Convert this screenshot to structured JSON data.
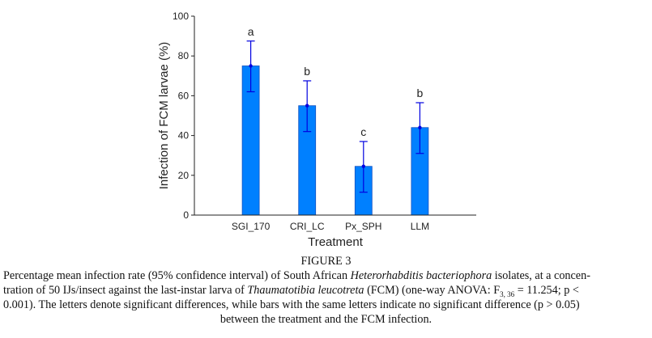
{
  "chart_data": {
    "type": "bar",
    "categories": [
      "SGI_170",
      "CRI_LC",
      "Px_SPH",
      "LLM"
    ],
    "values": [
      75,
      55,
      24.5,
      44
    ],
    "ci_lower": [
      62,
      42,
      11.5,
      31
    ],
    "ci_upper": [
      87.5,
      67.5,
      37,
      56.5
    ],
    "significance_letters": [
      "a",
      "b",
      "c",
      "b"
    ],
    "xlabel": "Treatment",
    "ylabel": "Infection of FCM larvae (%)",
    "ylim": [
      0,
      100
    ],
    "yticks": [
      "0",
      "20",
      "40",
      "60",
      "80",
      "100"
    ],
    "grid": false,
    "bar_color": "#0080ff",
    "error_color": "#0000e0"
  },
  "caption": {
    "figure_label": "FIGURE 3",
    "l1a": "Percentage mean infection rate (95% confidence interval) of South African ",
    "l1i": "Heterorhabditis bacteriophora",
    "l1b": " isolates, at a concen-",
    "l2a": "tration of 50 IJs/insect against the last-instar larva of ",
    "l2i": "Thaumatotibia leucotreta",
    "l2b": " (FCM) (one-way ANOVA: F",
    "l2sub": "3, 36",
    "l2c": " = 11.254; p <",
    "l3": "0.001). The letters denote significant differences, while bars with the same letters indicate no significant difference (p > 0.05)",
    "l4": "between the treatment and the FCM infection."
  }
}
